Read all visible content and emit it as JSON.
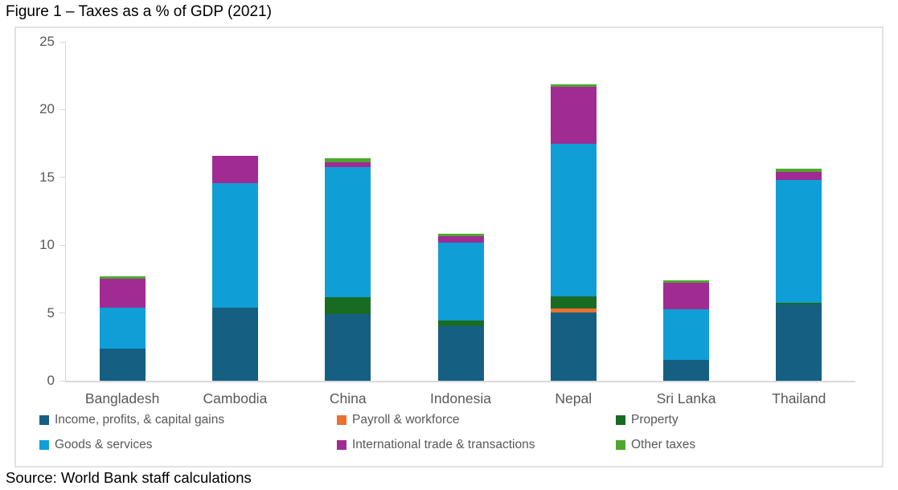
{
  "title": "Figure 1 – Taxes as a % of GDP (2021)",
  "source": "Source: World Bank staff calculations",
  "chart_data": {
    "type": "bar",
    "stacked": true,
    "title": "Figure 1 – Taxes as a % of GDP (2021)",
    "xlabel": "",
    "ylabel": "",
    "ylim": [
      0,
      25
    ],
    "yticks": [
      0,
      5,
      10,
      15,
      20,
      25
    ],
    "grid": false,
    "legend_position": "bottom",
    "categories": [
      "Bangladesh",
      "Cambodia",
      "China",
      "Indonesia",
      "Nepal",
      "Sri Lanka",
      "Thailand"
    ],
    "series": [
      {
        "name": "Income, profits, & capital gains",
        "color": "#156082",
        "values": [
          2.4,
          5.4,
          4.9,
          4.0,
          5.05,
          1.55,
          5.65
        ]
      },
      {
        "name": "Payroll & workforce",
        "color": "#E97132",
        "values": [
          0,
          0,
          0,
          0,
          0.3,
          0,
          0
        ]
      },
      {
        "name": "Property",
        "color": "#196B24",
        "values": [
          0,
          0,
          1.25,
          0.45,
          0.9,
          0,
          0.1
        ]
      },
      {
        "name": "Goods & services",
        "color": "#0F9ED5",
        "values": [
          3.0,
          9.15,
          9.6,
          5.75,
          11.25,
          3.7,
          9.05
        ]
      },
      {
        "name": "International trade & transactions",
        "color": "#A02B93",
        "values": [
          2.1,
          2.05,
          0.35,
          0.45,
          4.2,
          1.95,
          0.6
        ]
      },
      {
        "name": "Other taxes",
        "color": "#4EA72E",
        "values": [
          0.2,
          0,
          0.3,
          0.2,
          0.15,
          0.2,
          0.25
        ]
      }
    ],
    "totals": [
      7.7,
      16.6,
      16.4,
      10.85,
      21.85,
      7.4,
      15.65
    ]
  }
}
